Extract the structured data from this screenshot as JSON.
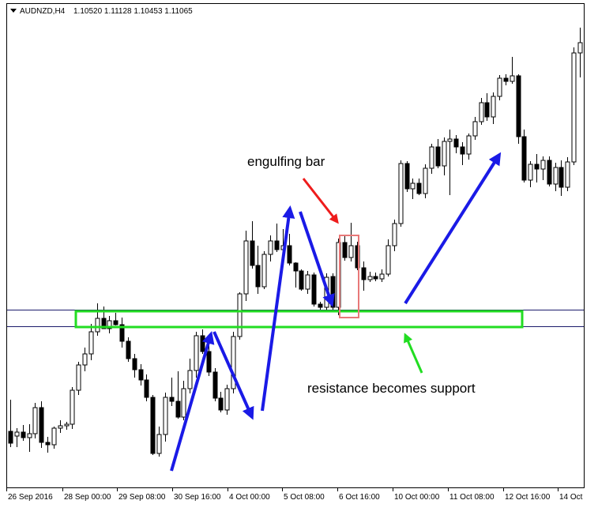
{
  "chart_data": {
    "type": "candlestick",
    "header": {
      "symbol": "AUDNZD,H4",
      "ohlc": "1.10520 1.11128 1.10453 1.11065"
    },
    "x_tick_labels": [
      "26 Sep 2016",
      "28 Sep 00:00",
      "29 Sep 08:00",
      "30 Sep 16:00",
      "4 Oct 00:00",
      "5 Oct 08:00",
      "6 Oct 16:00",
      "10 Oct 00:00",
      "11 Oct 08:00",
      "12 Oct 16:00",
      "14 Oct"
    ],
    "annotations": {
      "engulfing": "engulfing bar",
      "support": "resistance becomes support"
    },
    "colors": {
      "support_zone": "#22dd22",
      "trend_arrow": "#1a1ae6",
      "engulfing_arrow": "#ee1c1c",
      "support_arrow": "#22dd22",
      "engulfing_box": "#e87878",
      "level_line": "#1b1b6b"
    },
    "candles": [
      [
        546,
        506,
        566,
        561
      ],
      [
        552,
        542,
        566,
        547
      ],
      [
        547,
        538,
        558,
        554
      ],
      [
        554,
        537,
        572,
        549
      ],
      [
        549,
        510,
        555,
        516
      ],
      [
        516,
        508,
        567,
        560
      ],
      [
        560,
        553,
        573,
        563
      ],
      [
        563,
        540,
        568,
        542
      ],
      [
        542,
        532,
        548,
        539
      ],
      [
        539,
        534,
        544,
        537
      ],
      [
        537,
        490,
        543,
        494
      ],
      [
        494,
        458,
        500,
        462
      ],
      [
        462,
        440,
        470,
        448
      ],
      [
        448,
        410,
        456,
        420
      ],
      [
        420,
        384,
        425,
        403
      ],
      [
        403,
        388,
        412,
        416
      ],
      [
        416,
        400,
        422,
        406
      ],
      [
        406,
        396,
        412,
        411
      ],
      [
        411,
        402,
        440,
        432
      ],
      [
        432,
        427,
        458,
        454
      ],
      [
        454,
        448,
        478,
        468
      ],
      [
        468,
        461,
        488,
        481
      ],
      [
        481,
        474,
        508,
        503
      ],
      [
        503,
        500,
        576,
        574
      ],
      [
        574,
        540,
        578,
        550
      ],
      [
        550,
        497,
        559,
        503
      ],
      [
        503,
        478,
        514,
        508
      ],
      [
        508,
        470,
        530,
        528
      ],
      [
        528,
        482,
        532,
        492
      ],
      [
        492,
        454,
        498,
        469
      ],
      [
        469,
        420,
        478,
        425
      ],
      [
        425,
        417,
        448,
        445
      ],
      [
        445,
        434,
        476,
        471
      ],
      [
        471,
        466,
        508,
        504
      ],
      [
        504,
        496,
        522,
        519
      ],
      [
        519,
        487,
        525,
        492
      ],
      [
        492,
        420,
        498,
        426
      ],
      [
        426,
        370,
        430,
        372
      ],
      [
        372,
        292,
        381,
        305
      ],
      [
        305,
        280,
        340,
        336
      ],
      [
        336,
        311,
        372,
        363
      ],
      [
        363,
        318,
        366,
        322
      ],
      [
        322,
        298,
        331,
        305
      ],
      [
        305,
        283,
        319,
        316
      ],
      [
        316,
        290,
        324,
        311
      ],
      [
        311,
        296,
        336,
        333
      ],
      [
        333,
        332,
        364,
        343
      ],
      [
        343,
        341,
        368,
        366
      ],
      [
        366,
        343,
        372,
        348
      ],
      [
        348,
        345,
        388,
        385
      ],
      [
        385,
        382,
        392,
        389
      ],
      [
        389,
        346,
        393,
        351
      ],
      [
        350,
        346,
        392,
        389
      ],
      [
        389,
        302,
        399,
        307
      ],
      [
        307,
        297,
        330,
        326
      ],
      [
        326,
        282,
        331,
        311
      ],
      [
        311,
        306,
        342,
        339
      ],
      [
        339,
        331,
        368,
        354
      ],
      [
        354,
        344,
        357,
        350
      ],
      [
        350,
        345,
        356,
        353
      ],
      [
        353,
        341,
        357,
        347
      ],
      [
        347,
        303,
        350,
        311
      ],
      [
        311,
        278,
        318,
        283
      ],
      [
        283,
        203,
        287,
        207
      ],
      [
        207,
        204,
        243,
        239
      ],
      [
        239,
        226,
        252,
        232
      ],
      [
        232,
        226,
        247,
        245
      ],
      [
        245,
        208,
        251,
        213
      ],
      [
        213,
        182,
        220,
        186
      ],
      [
        186,
        176,
        213,
        210
      ],
      [
        210,
        174,
        222,
        179
      ],
      [
        179,
        164,
        247,
        176
      ],
      [
        176,
        171,
        194,
        186
      ],
      [
        186,
        180,
        209,
        195
      ],
      [
        195,
        169,
        202,
        172
      ],
      [
        172,
        148,
        177,
        154
      ],
      [
        154,
        124,
        158,
        130
      ],
      [
        130,
        118,
        153,
        148
      ],
      [
        148,
        117,
        157,
        122
      ],
      [
        122,
        95,
        127,
        99
      ],
      [
        99,
        94,
        108,
        103
      ],
      [
        103,
        72,
        106,
        96
      ],
      [
        96,
        94,
        182,
        173
      ],
      [
        173,
        164,
        231,
        228
      ],
      [
        228,
        204,
        237,
        208
      ],
      [
        208,
        195,
        231,
        214
      ],
      [
        214,
        198,
        228,
        203
      ],
      [
        203,
        198,
        236,
        233
      ],
      [
        233,
        206,
        242,
        212
      ],
      [
        212,
        203,
        248,
        237
      ],
      [
        237,
        199,
        242,
        205
      ],
      [
        205,
        60,
        209,
        67
      ],
      [
        67,
        35,
        98,
        54
      ]
    ]
  }
}
